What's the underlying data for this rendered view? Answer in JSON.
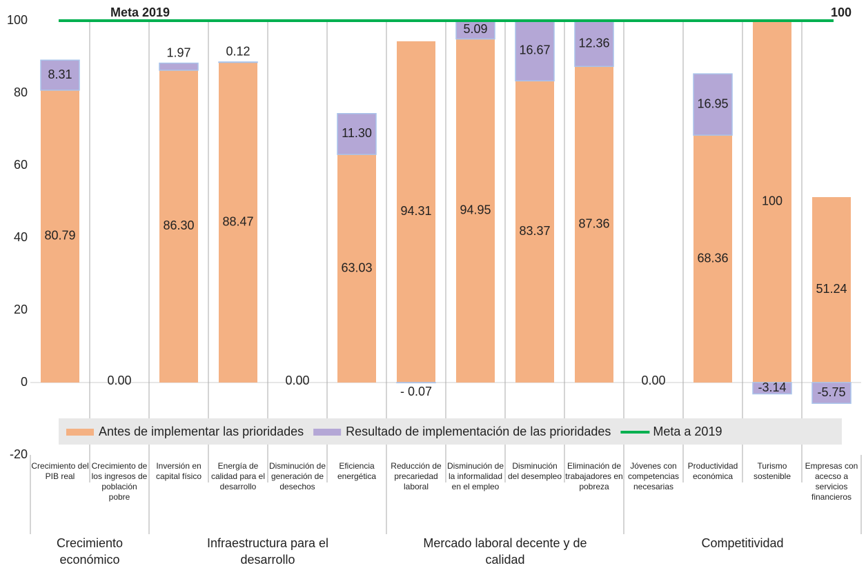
{
  "chart_data": {
    "type": "stacked_bar",
    "categories": [
      "Crecimiento del PIB real",
      "Crecimiento de los ingresos de población pobre",
      "Inversión en capital físico",
      "Energía de calidad para el desarrollo",
      "Disminución de generación de desechos",
      "Eficiencia energética",
      "Reducción de precariedad laboral",
      "Disminución de la informalidad en el empleo",
      "Disminución del desempleo",
      "Eliminación de trabajadores en pobreza",
      "Jóvenes con competencias necesarias",
      "Productividad económica",
      "Turismo sostenible",
      "Empresas con acecso a servicios financieros"
    ],
    "groups": [
      {
        "label": "Crecimiento económico",
        "span": 2
      },
      {
        "label": "Infraestructura para el desarrollo",
        "span": 4
      },
      {
        "label": "Mercado laboral decente y de calidad",
        "span": 4
      },
      {
        "label": "Competitividad",
        "span": 4
      }
    ],
    "series": [
      {
        "name": "Antes de implementar las prioridades",
        "color": "#f4b183",
        "values": [
          80.79,
          0,
          86.3,
          88.47,
          0,
          63.03,
          94.31,
          94.95,
          83.37,
          87.36,
          0,
          68.36,
          100,
          51.24
        ],
        "value_labels": [
          "80.79",
          "0.00",
          "86.30",
          "88.47",
          "0.00",
          "63.03",
          "94.31",
          "94.95",
          "83.37",
          "87.36",
          "0.00",
          "68.36",
          "100",
          "51.24"
        ]
      },
      {
        "name": "Resultado de implementación de las prioridades",
        "color": "#b4a7d6",
        "values": [
          8.31,
          null,
          1.97,
          0.12,
          null,
          11.3,
          -0.07,
          5.09,
          16.67,
          12.36,
          null,
          16.95,
          -3.14,
          -5.75
        ],
        "value_labels": [
          "8.31",
          null,
          "1.97",
          "0.12",
          null,
          "11.30",
          "- 0.07",
          "5.09",
          "16.67",
          "12.36",
          null,
          "16.95",
          "-3.14",
          "-5.75"
        ]
      }
    ],
    "target_line": {
      "name": "Meta a 2019",
      "label": "Meta 2019",
      "value": 100,
      "color": "#00b050"
    },
    "ylim": [
      -20,
      100
    ],
    "yticks": [
      -20,
      0,
      20,
      40,
      60,
      80,
      100
    ]
  }
}
